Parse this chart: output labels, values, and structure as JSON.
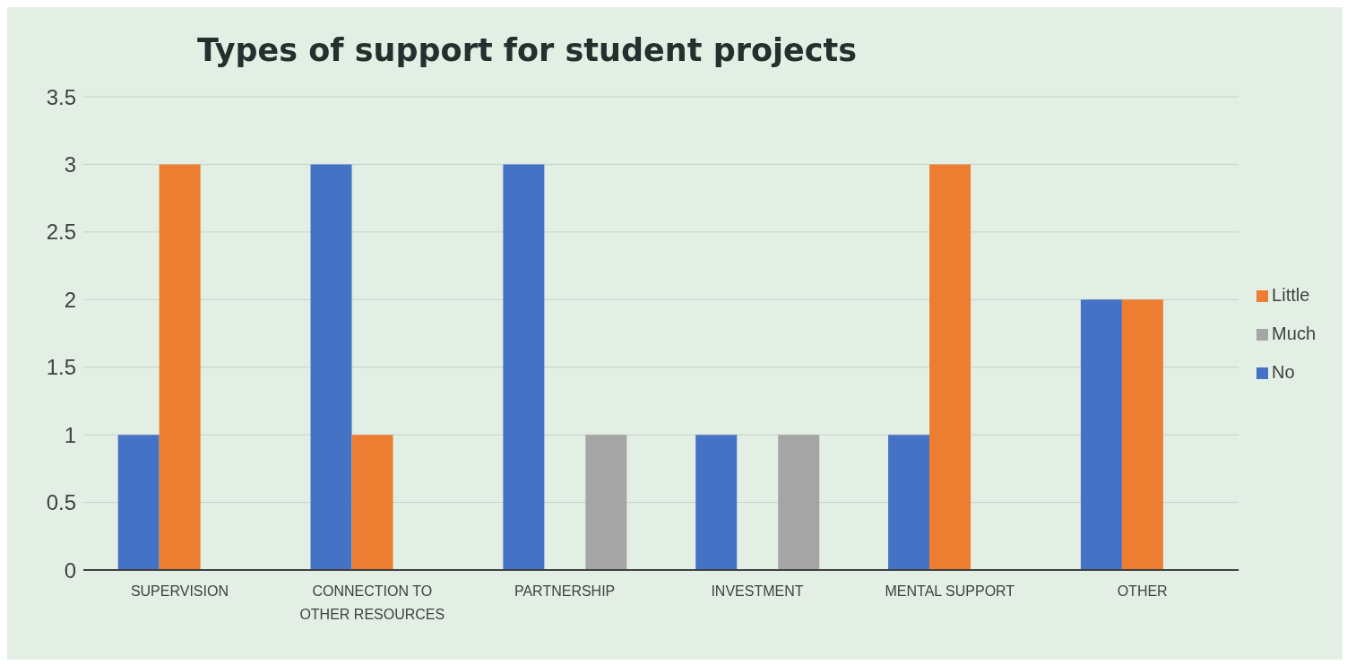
{
  "chart_data": {
    "type": "bar",
    "title": "Types of support for student projects",
    "categories": [
      "SUPERVISION",
      "CONNECTION TO OTHER RESOURCES",
      "PARTNERSHIP",
      "INVESTMENT",
      "MENTAL SUPPORT",
      "OTHER"
    ],
    "series": [
      {
        "name": "No",
        "color": "#4472c4",
        "values": [
          1,
          3,
          3,
          1,
          1,
          2
        ]
      },
      {
        "name": "Little",
        "color": "#ed7d31",
        "values": [
          3,
          1,
          0,
          0,
          3,
          2
        ]
      },
      {
        "name": "Much",
        "color": "#a5a5a5",
        "values": [
          0,
          0,
          1,
          1,
          0,
          0
        ]
      }
    ],
    "ylim": [
      0,
      3.5
    ],
    "yticks": [
      0,
      0.5,
      1,
      1.5,
      2,
      2.5,
      3,
      3.5
    ],
    "grid": "y",
    "legend": "right"
  }
}
